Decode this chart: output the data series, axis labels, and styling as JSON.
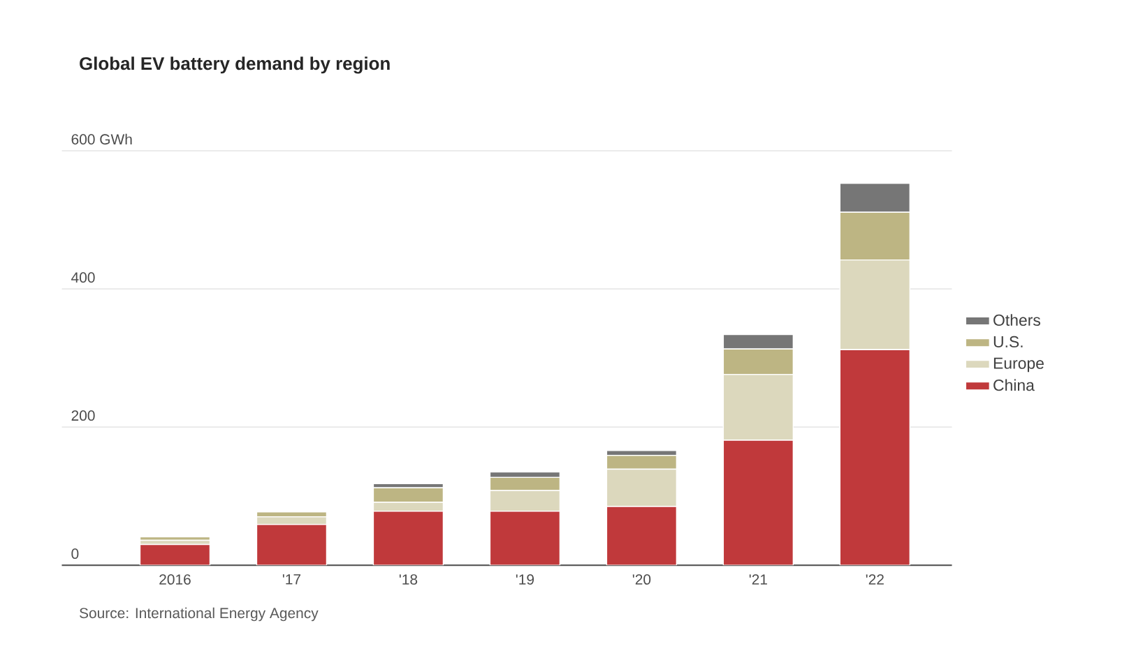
{
  "chart_data": {
    "type": "bar",
    "stacked": true,
    "title": "Global EV battery demand by region",
    "categories": [
      "2016",
      "'17",
      "'18",
      "'19",
      "'20",
      "'21",
      "'22"
    ],
    "series": [
      {
        "name": "China",
        "color": "#c0393b",
        "values": [
          30,
          59,
          78,
          78,
          85,
          181,
          312
        ]
      },
      {
        "name": "Europe",
        "color": "#dcd8bd",
        "values": [
          6,
          11,
          13,
          30,
          54,
          95,
          130
        ]
      },
      {
        "name": "U.S.",
        "color": "#bdb583",
        "values": [
          5,
          7,
          21,
          19,
          20,
          37,
          69
        ]
      },
      {
        "name": "Others",
        "color": "#767676",
        "values": [
          0,
          0,
          6,
          8,
          7,
          21,
          42
        ]
      }
    ],
    "ylim": [
      0,
      600
    ],
    "yticks": [
      0,
      200,
      400,
      {
        "value": 600,
        "label": "600 GWh"
      }
    ],
    "grid": "y",
    "legend": "right",
    "annotations": [
      "Source: International Energy Agency"
    ]
  }
}
